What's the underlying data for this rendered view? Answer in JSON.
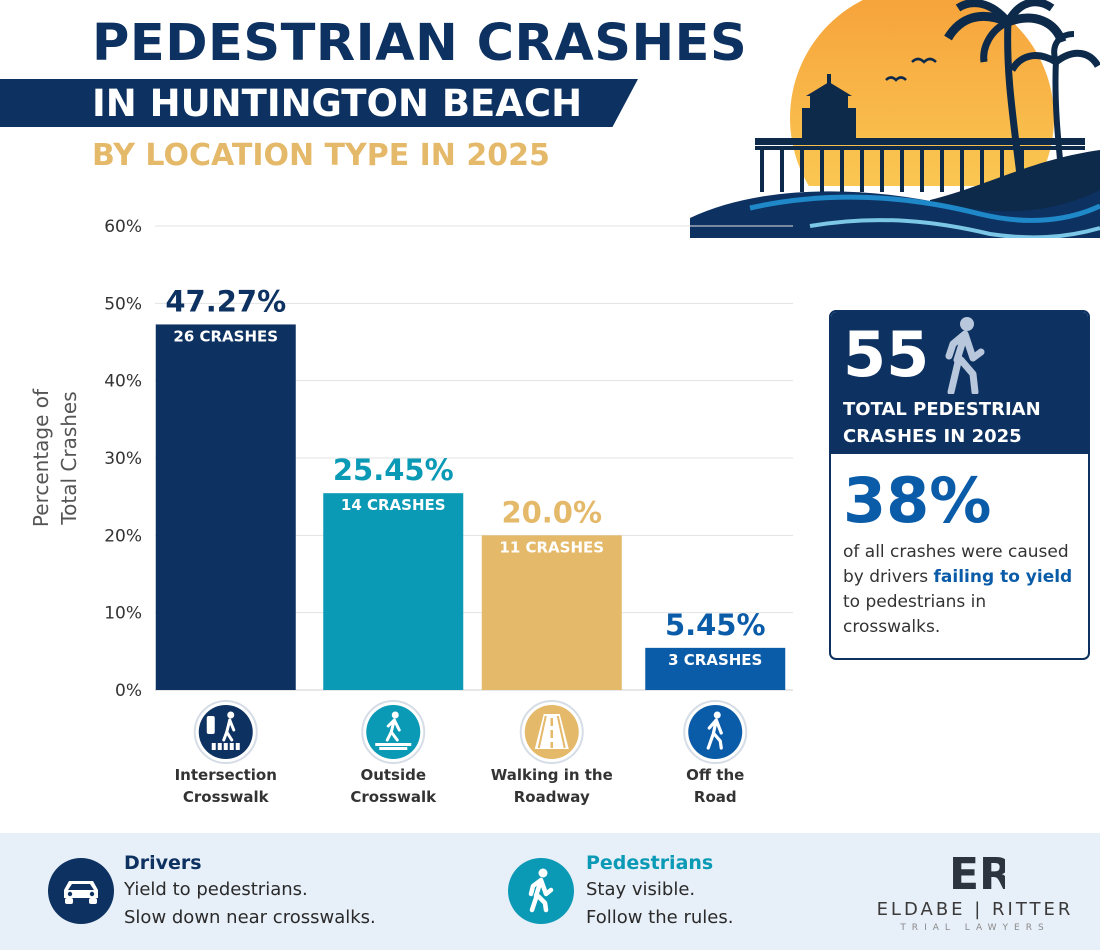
{
  "header": {
    "title_line1": "PEDESTRIAN CRASHES",
    "title_line2": "IN HUNTINGTON BEACH",
    "title_line3": "BY LOCATION TYPE IN 2025"
  },
  "colors": {
    "navy": "#0d3160",
    "teal": "#0b9ab5",
    "gold": "#e5b96a",
    "blue": "#0b5ca8"
  },
  "chart_data": {
    "type": "bar",
    "ylabel": "Percentage of Total Crashes",
    "ylabel_lines": [
      "Percentage of",
      "Total Crashes"
    ],
    "ylim": [
      0,
      60
    ],
    "yticks": [
      0,
      10,
      20,
      30,
      40,
      50,
      60
    ],
    "ytick_labels": [
      "0%",
      "10%",
      "20%",
      "30%",
      "40%",
      "50%",
      "60%"
    ],
    "grid": true,
    "categories": [
      "Intersection Crosswalk",
      "Outside Crosswalk",
      "Walking in the Roadway",
      "Off the Road"
    ],
    "category_lines": [
      [
        "Intersection",
        "Crosswalk"
      ],
      [
        "Outside",
        "Crosswalk"
      ],
      [
        "Walking in the",
        "Roadway"
      ],
      [
        "Off the",
        "Road"
      ]
    ],
    "values": [
      47.27,
      25.45,
      20.0,
      5.45
    ],
    "value_labels": [
      "47.27%",
      "25.45%",
      "20.0%",
      "5.45%"
    ],
    "crash_labels": [
      "26 CRASHES",
      "14 CRASHES",
      "11 CRASHES",
      "3 CRASHES"
    ],
    "bar_colors": [
      "#0d3160",
      "#0b9ab5",
      "#e5b96a",
      "#0b5ca8"
    ],
    "value_label_colors": [
      "#0d3160",
      "#0b9ab5",
      "#e5b96a",
      "#0b5ca8"
    ],
    "icons": [
      "crosswalk-signal-icon",
      "crosswalk-pedestrian-icon",
      "road-icon",
      "walking-person-icon"
    ]
  },
  "stats": {
    "total": "55",
    "total_label": "TOTAL PEDESTRIAN CRASHES IN 2025",
    "percent": "38%",
    "desc_before": "of all crashes were caused by drivers ",
    "desc_highlight": "failing to yield",
    "desc_after": " to pedestrians in crosswalks."
  },
  "footer": {
    "drivers": {
      "heading": "Drivers",
      "line1": "Yield to pedestrians.",
      "line2": "Slow down near crosswalks.",
      "icon": "car-icon"
    },
    "pedestrians": {
      "heading": "Pedestrians",
      "line1": "Stay visible.",
      "line2": "Follow the rules.",
      "icon": "walking-person-icon"
    },
    "logo": {
      "mark": "ER",
      "name": "ELDABE | RITTER",
      "sub": "TRIAL LAWYERS"
    }
  }
}
